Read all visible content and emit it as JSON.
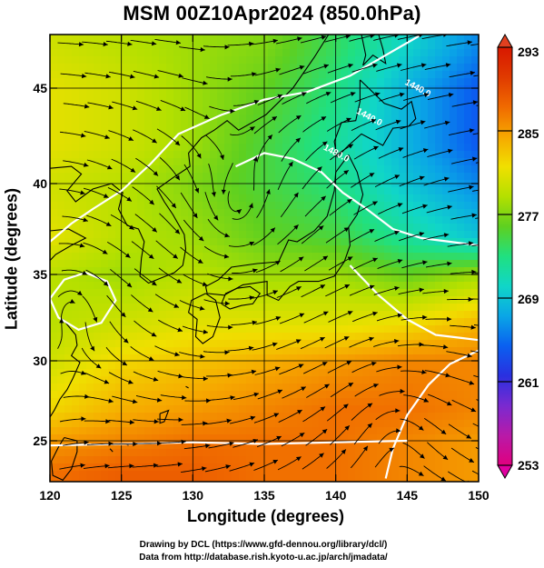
{
  "title": "MSM 00Z10Apr2024 (850.0hPa)",
  "x_axis": {
    "label": "Longitude (degrees)",
    "ticks": [
      "120",
      "125",
      "130",
      "135",
      "140",
      "145",
      "150"
    ]
  },
  "y_axis": {
    "label": "Latitude  (degrees)",
    "ticks": [
      "25",
      "30",
      "35",
      "40",
      "45"
    ]
  },
  "colorbar": {
    "labels": [
      "293",
      "285",
      "277",
      "269",
      "261",
      "253"
    ],
    "min": 253,
    "max": 293,
    "colors": [
      "#e0007f",
      "#b81aa8",
      "#7a2ad0",
      "#2a30e0",
      "#0a60f0",
      "#0aa6e6",
      "#10d6c8",
      "#20e080",
      "#5ed020",
      "#b4e000",
      "#f0e000",
      "#f6a800",
      "#f06a00",
      "#e03a00",
      "#d81800"
    ]
  },
  "contour_labels": [
    "1440.0",
    "1440.0",
    "1480.0"
  ],
  "credits": {
    "line1": "Drawing by DCL (https://www.gfd-dennou.org/library/dcl/)",
    "line2": "Data from http://database.rish.kyoto-u.ac.jp/arch/jmadata/"
  },
  "chart_data": {
    "type": "heatmap",
    "title": "MSM 00Z10Apr2024 (850.0hPa)",
    "xlabel": "Longitude (degrees)",
    "ylabel": "Latitude  (degrees)",
    "xlim": [
      120,
      150
    ],
    "ylim": [
      22.4,
      47.6
    ],
    "x_ticks": [
      120,
      125,
      130,
      135,
      140,
      145,
      150
    ],
    "y_ticks": [
      25,
      30,
      35,
      40,
      45
    ],
    "colorbar_range": [
      253,
      293
    ],
    "colorbar_ticks": [
      293,
      285,
      277,
      269,
      261,
      253
    ],
    "approx_temperature_grid": {
      "lon": [
        120,
        125,
        130,
        135,
        140,
        145,
        150
      ],
      "lat": [
        47,
        45,
        42,
        40,
        37,
        35,
        32,
        30,
        27,
        25,
        23
      ],
      "values": [
        [
          280,
          279,
          278,
          277,
          274,
          270,
          266
        ],
        [
          281,
          280,
          278,
          276,
          273,
          268,
          264
        ],
        [
          281,
          280,
          278,
          275,
          272,
          268,
          264
        ],
        [
          280,
          279,
          277,
          275,
          273,
          269,
          266
        ],
        [
          281,
          279,
          278,
          276,
          275,
          272,
          269
        ],
        [
          279,
          278,
          279,
          278,
          278,
          276,
          278
        ],
        [
          279,
          280,
          281,
          281,
          281,
          282,
          284
        ],
        [
          280,
          282,
          283,
          284,
          285,
          286,
          286
        ],
        [
          282,
          284,
          285,
          286,
          287,
          287,
          286
        ],
        [
          285,
          286,
          287,
          287,
          287,
          286,
          285
        ],
        [
          287,
          288,
          288,
          287,
          287,
          286,
          285
        ]
      ]
    },
    "contours": {
      "labels": [
        "1440.0",
        "1440.0",
        "1480.0"
      ]
    },
    "grid": true
  }
}
